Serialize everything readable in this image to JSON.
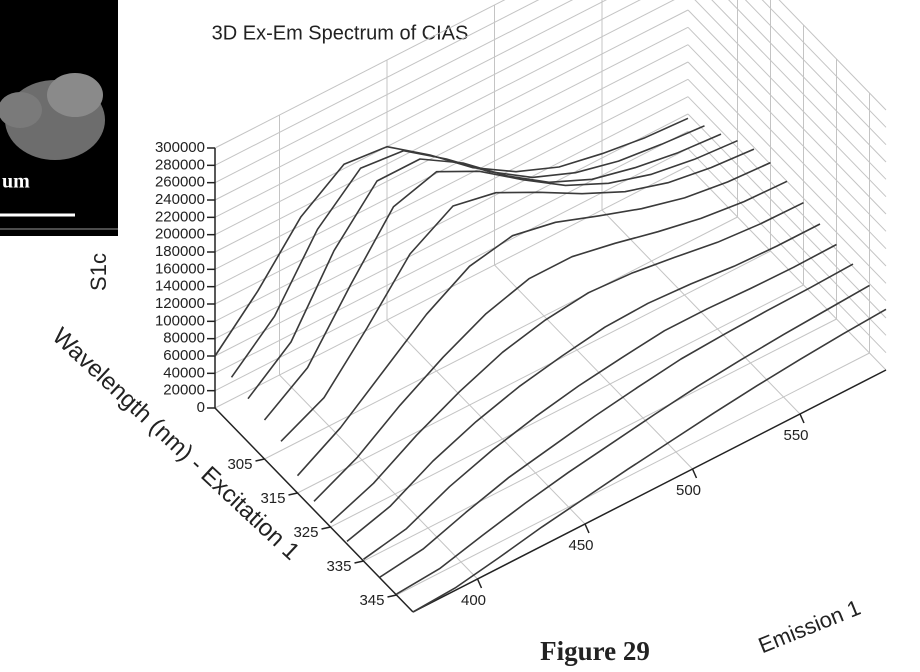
{
  "inset": {
    "label": "um"
  },
  "chart_data": {
    "type": "waterfall3d",
    "title": "3D Ex-Em Spectrum of CIAS",
    "caption": "Figure 29",
    "x_label": "Emission 1",
    "excitation_label": "Wavelength (nm) - Excitation 1",
    "z_label": "S1c",
    "x": [
      370,
      390,
      410,
      430,
      450,
      470,
      490,
      510,
      530,
      550,
      570,
      590
    ],
    "xlim": [
      370,
      590
    ],
    "xticks": [
      400,
      450,
      500,
      550
    ],
    "excitation_lim": [
      290,
      350
    ],
    "excitation_ticks": [
      305,
      315,
      325,
      335,
      345
    ],
    "zlim": [
      0,
      300000
    ],
    "zticks": [
      0,
      20000,
      40000,
      60000,
      80000,
      100000,
      120000,
      140000,
      160000,
      180000,
      200000,
      220000,
      240000,
      260000,
      280000,
      300000
    ],
    "grid": true,
    "color": "#3a3a3a",
    "series": [
      {
        "excitation": 290,
        "values": [
          60000,
          110000,
          170000,
          205000,
          200000,
          165000,
          125000,
          95000,
          75000,
          65000,
          58000,
          55000
        ]
      },
      {
        "excitation": 295,
        "values": [
          55000,
          100000,
          175000,
          220000,
          215000,
          180000,
          140000,
          108000,
          88000,
          76000,
          70000,
          66000
        ]
      },
      {
        "excitation": 300,
        "values": [
          50000,
          90000,
          170000,
          225000,
          225000,
          195000,
          155000,
          122000,
          100000,
          88000,
          80000,
          76000
        ]
      },
      {
        "excitation": 305,
        "values": [
          45000,
          80000,
          150000,
          215000,
          230000,
          205000,
          170000,
          138000,
          115000,
          100000,
          92000,
          88000
        ]
      },
      {
        "excitation": 310,
        "values": [
          40000,
          65000,
          120000,
          180000,
          210000,
          200000,
          175000,
          148000,
          125000,
          110000,
          102000,
          98000
        ]
      },
      {
        "excitation": 315,
        "values": [
          20000,
          50000,
          90000,
          130000,
          160000,
          170000,
          160000,
          142000,
          125000,
          112000,
          105000,
          102000
        ]
      },
      {
        "excitation": 320,
        "values": [
          10000,
          35000,
          70000,
          100000,
          125000,
          140000,
          140000,
          130000,
          118000,
          108000,
          102000,
          100000
        ]
      },
      {
        "excitation": 325,
        "values": [
          5000,
          25000,
          55000,
          80000,
          100000,
          112000,
          118000,
          115000,
          108000,
          100000,
          96000,
          95000
        ]
      },
      {
        "excitation": 330,
        "values": [
          3000,
          18000,
          45000,
          65000,
          80000,
          90000,
          98000,
          100000,
          97000,
          92000,
          90000,
          90000
        ]
      },
      {
        "excitation": 335,
        "values": [
          2000,
          12000,
          35000,
          52000,
          65000,
          75000,
          82000,
          88000,
          88000,
          86000,
          85000,
          86000
        ]
      },
      {
        "excitation": 340,
        "values": [
          1000,
          8000,
          25000,
          40000,
          50000,
          60000,
          68000,
          75000,
          78000,
          80000,
          81000,
          83000
        ]
      },
      {
        "excitation": 345,
        "values": [
          1000,
          5000,
          18000,
          30000,
          40000,
          48000,
          56000,
          63000,
          68000,
          72000,
          75000,
          78000
        ]
      },
      {
        "excitation": 350,
        "values": [
          0,
          3000,
          12000,
          22000,
          30000,
          38000,
          45000,
          52000,
          58000,
          63000,
          67000,
          70000
        ]
      }
    ]
  }
}
